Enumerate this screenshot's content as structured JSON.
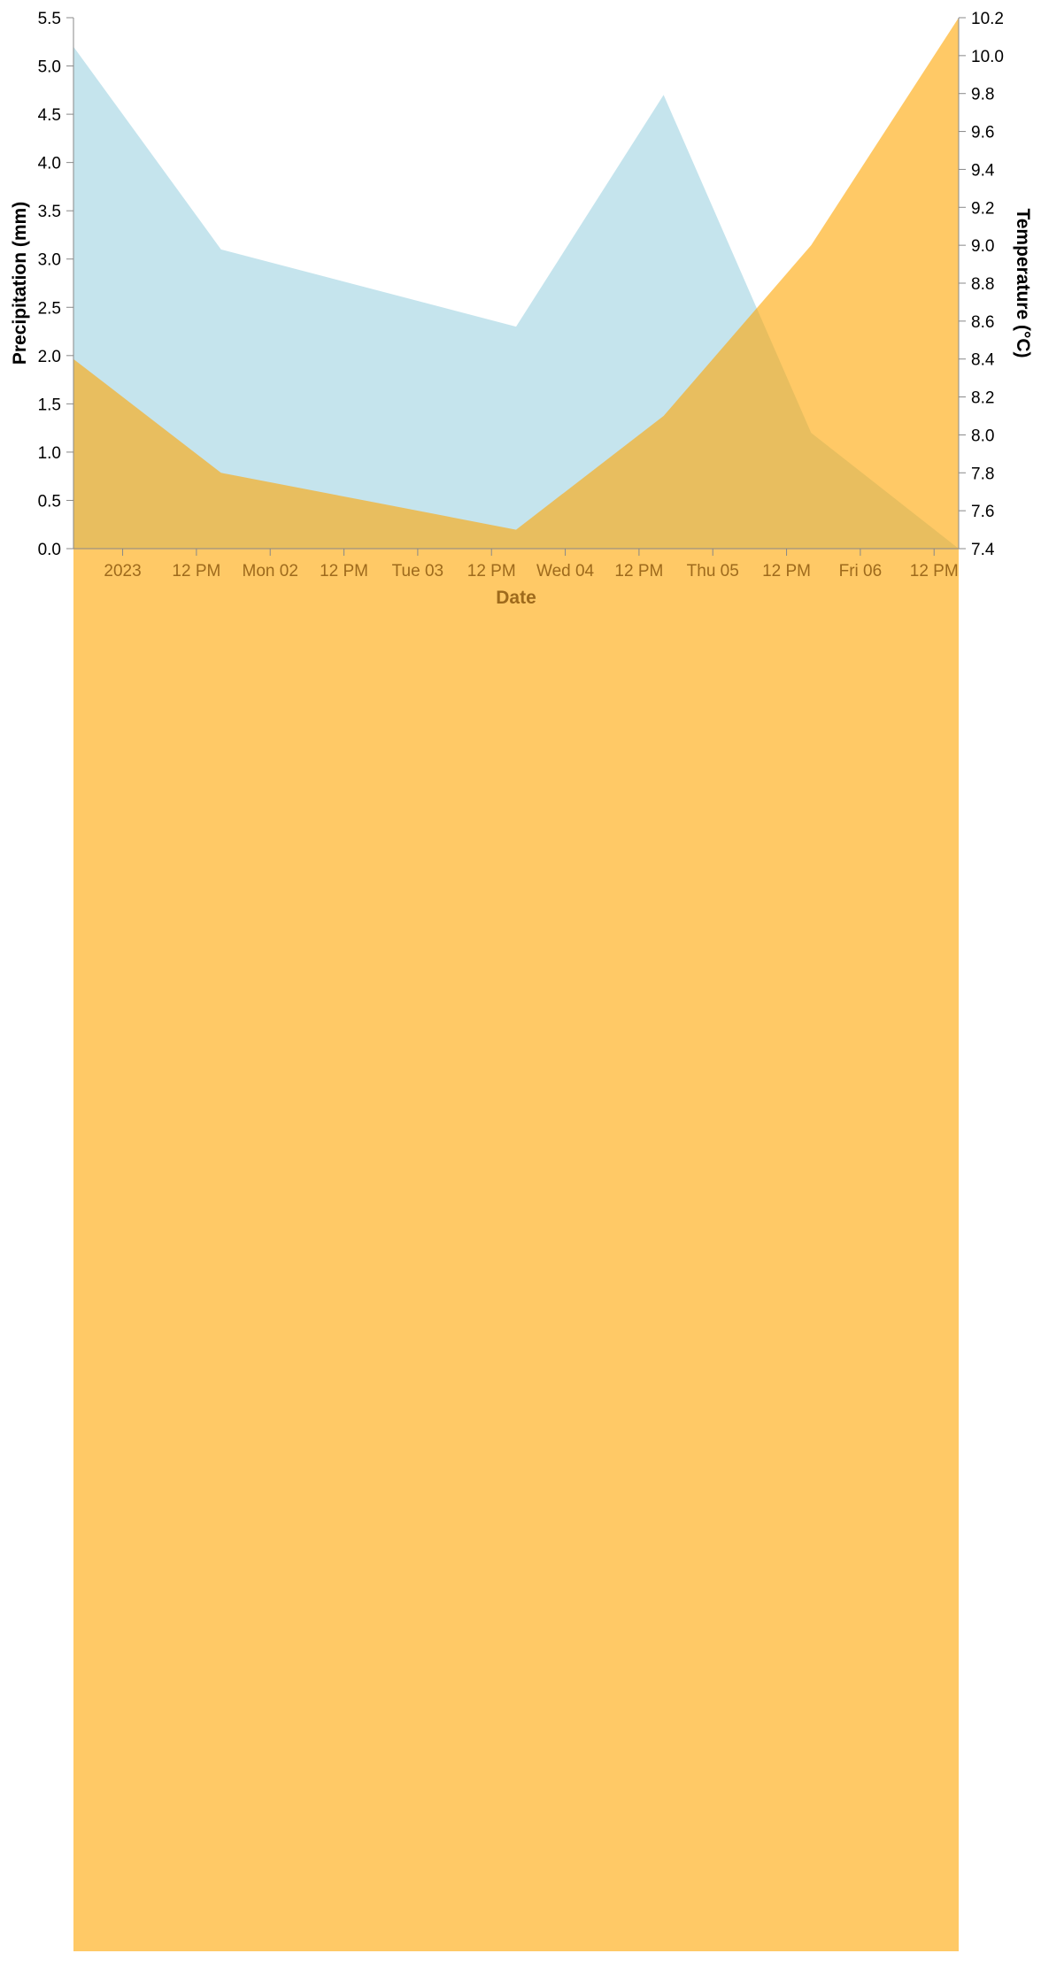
{
  "chart_data": {
    "type": "area",
    "xlabel": "Date",
    "x_ticks": [
      "2023",
      "12 PM",
      "Mon 02",
      "12 PM",
      "Tue 03",
      "12 PM",
      "Wed 04",
      "12 PM",
      "Thu 05",
      "12 PM",
      "Fri 06",
      "12 PM"
    ],
    "x_tick_times": [
      "2023-01-01T00:00",
      "2023-01-01T12:00",
      "2023-01-02T00:00",
      "2023-01-02T12:00",
      "2023-01-03T00:00",
      "2023-01-03T12:00",
      "2023-01-04T00:00",
      "2023-01-04T12:00",
      "2023-01-05T00:00",
      "2023-01-05T12:00",
      "2023-01-06T00:00",
      "2023-01-06T12:00"
    ],
    "xlim": [
      "2022-12-31T16:00",
      "2023-01-06T16:00"
    ],
    "y_left": {
      "label": "Precipitation (mm)",
      "ylim": [
        0,
        5.5
      ],
      "ticks": [
        "0.0",
        "0.5",
        "1.0",
        "1.5",
        "2.0",
        "2.5",
        "3.0",
        "3.5",
        "4.0",
        "4.5",
        "5.0",
        "5.5"
      ]
    },
    "y_right": {
      "label": "Temperature (°C)",
      "ylim": [
        7.4,
        10.2
      ],
      "ticks": [
        "7.4",
        "7.6",
        "7.8",
        "8.0",
        "8.2",
        "8.4",
        "8.6",
        "8.8",
        "9.0",
        "9.2",
        "9.4",
        "9.6",
        "9.8",
        "10.0",
        "10.2"
      ]
    },
    "series": [
      {
        "axis": "left",
        "color": "#add8e6",
        "opacity": 0.7,
        "points": [
          {
            "x": "2022-12-31T16:00",
            "y": 5.2
          },
          {
            "x": "2023-01-01T16:00",
            "y": 3.1
          },
          {
            "x": "2023-01-02T16:00",
            "y": 2.7
          },
          {
            "x": "2023-01-03T16:00",
            "y": 2.3
          },
          {
            "x": "2023-01-04T16:00",
            "y": 4.7
          },
          {
            "x": "2023-01-05T16:00",
            "y": 1.2
          },
          {
            "x": "2023-01-06T16:00",
            "y": 0.0
          }
        ]
      },
      {
        "axis": "right",
        "color": "#ffa500",
        "opacity": 0.6,
        "points": [
          {
            "x": "2022-12-31T16:00",
            "y": 8.4
          },
          {
            "x": "2023-01-01T16:00",
            "y": 7.8
          },
          {
            "x": "2023-01-02T16:00",
            "y": 7.65
          },
          {
            "x": "2023-01-03T16:00",
            "y": 7.5
          },
          {
            "x": "2023-01-04T16:00",
            "y": 8.1
          },
          {
            "x": "2023-01-05T16:00",
            "y": 9.0
          },
          {
            "x": "2023-01-06T16:00",
            "y": 10.2
          }
        ]
      }
    ],
    "colors": {
      "axis": "#888888",
      "left_text": "#000000",
      "right_text": "#000000",
      "x_text": "#9e6a1c"
    },
    "grid": false
  }
}
